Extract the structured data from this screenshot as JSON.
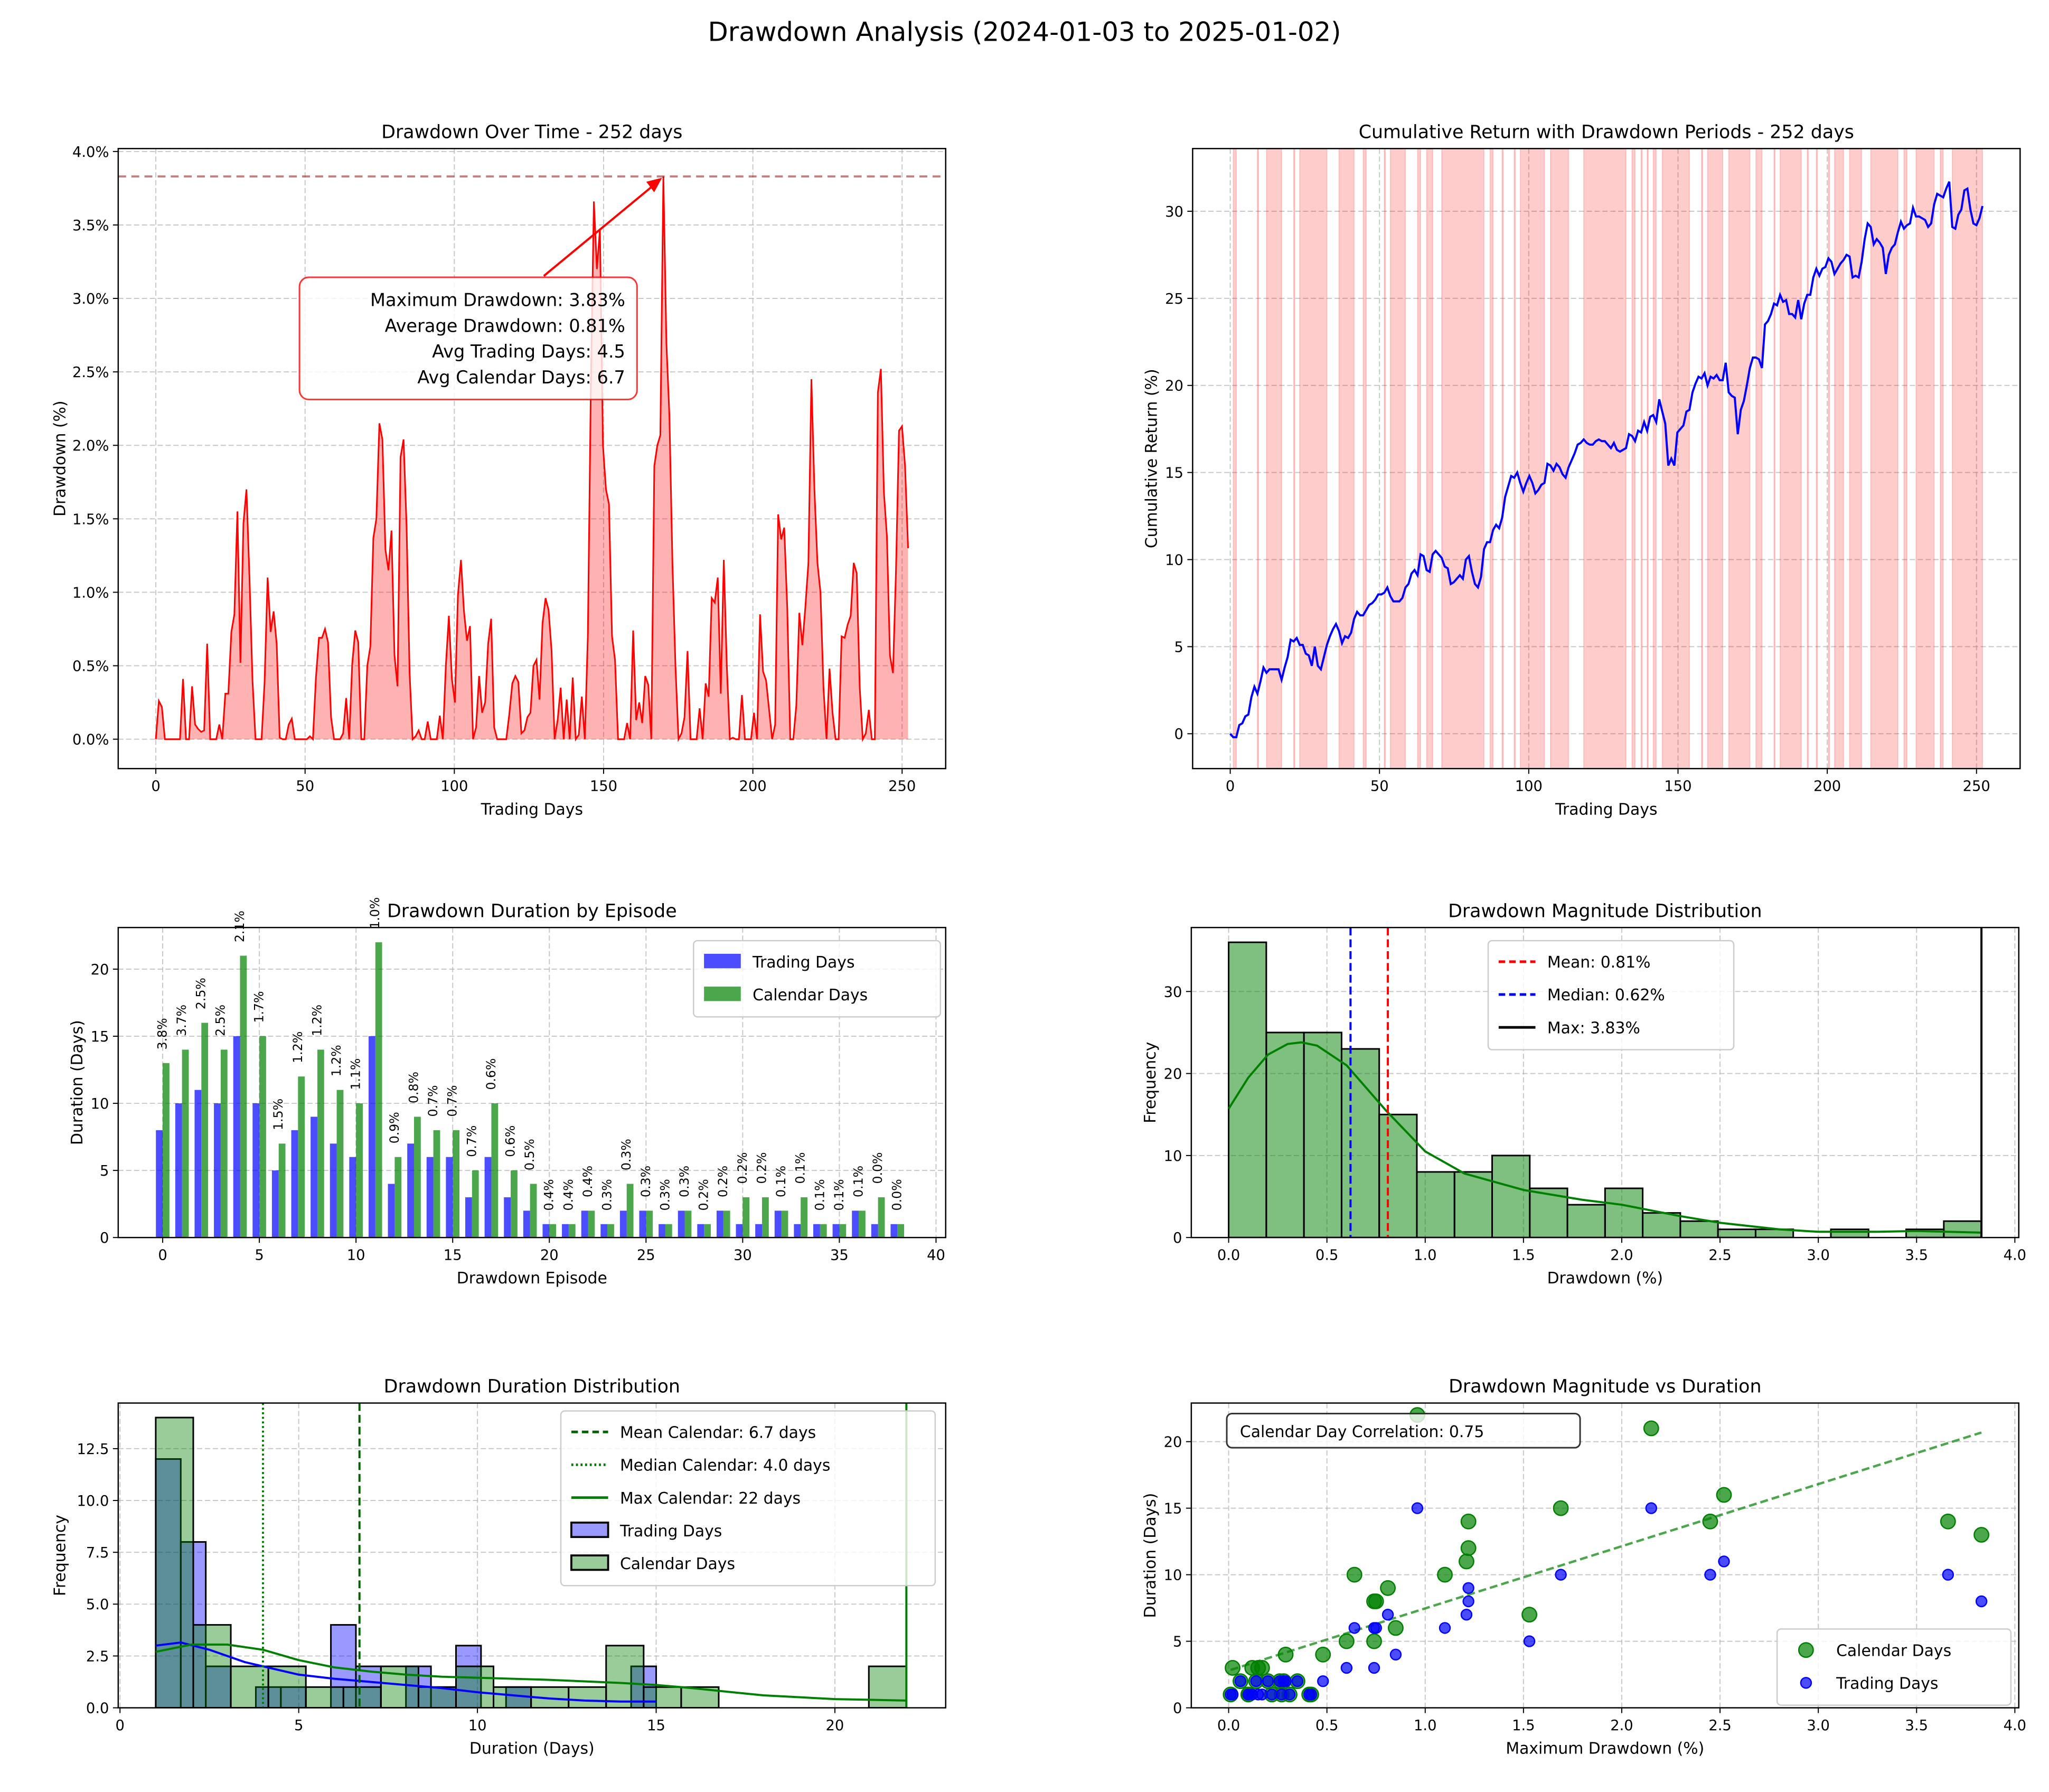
{
  "suptitle": "Drawdown Analysis (2024-01-03 to 2025-01-02)",
  "chart_data": [
    {
      "type": "area",
      "title": "Drawdown Over Time - 252 days",
      "xlabel": "Trading Days",
      "ylabel": "Drawdown (%)",
      "xlim": [
        -12.6,
        264.6
      ],
      "ylim": [
        -0.2,
        4.02
      ],
      "xticks": [
        0,
        50,
        100,
        150,
        200,
        250
      ],
      "xtick_labels": [
        "0",
        "50",
        "100",
        "150",
        "200",
        "250"
      ],
      "yticks": [
        0,
        0.5,
        1,
        1.5,
        2,
        2.5,
        3,
        3.5,
        4
      ],
      "ytick_labels": [
        "0.0%",
        "0.5%",
        "1.0%",
        "1.5%",
        "2.0%",
        "2.5%",
        "3.0%",
        "3.5%",
        "4.0%"
      ],
      "grid": true,
      "x_range_days": [
        0,
        252
      ],
      "line_color": "#ff0000",
      "max_drawdown_line": 3.83,
      "annotation": [
        "Maximum Drawdown: 3.83%",
        "Average Drawdown: 0.81%",
        "Avg Trading Days: 4.5",
        "Avg Calendar Days: 6.7"
      ],
      "drawdown_pct": [
        0,
        0.26,
        0.22,
        0,
        0,
        0,
        0,
        0,
        0,
        0.41,
        0,
        0,
        0.36,
        0.1,
        0.07,
        0.05,
        0.06,
        0.65,
        0,
        0,
        0,
        0.1,
        0,
        0.31,
        0.31,
        0.73,
        0.85,
        1.55,
        0.52,
        1.47,
        1.7,
        1.1,
        0.4,
        0,
        0,
        0,
        0.39,
        1.1,
        0.73,
        0.87,
        0.65,
        0.01,
        0,
        0,
        0.1,
        0.14,
        0,
        0,
        0,
        0,
        0,
        0.02,
        0,
        0.42,
        0.69,
        0.69,
        0.75,
        0.66,
        0.15,
        0,
        0,
        0,
        0.04,
        0.28,
        0,
        0.51,
        0.74,
        0.66,
        0,
        0,
        0.5,
        0.63,
        1.37,
        1.5,
        2.15,
        2.04,
        1.29,
        1.15,
        1.42,
        0.57,
        0.36,
        1.92,
        2.04,
        1.45,
        0.45,
        0,
        0.02,
        0.06,
        0,
        0,
        0.12,
        0,
        0,
        0,
        0.16,
        0,
        0.5,
        0.84,
        0.41,
        0.25,
        0.98,
        1.22,
        0.87,
        0.67,
        0.77,
        0,
        0.08,
        0.43,
        0.18,
        0.25,
        0.65,
        0.82,
        0.08,
        0,
        0,
        0,
        0,
        0.17,
        0.38,
        0.43,
        0.39,
        0.04,
        0.06,
        0.15,
        0.18,
        0.5,
        0.54,
        0.27,
        0.79,
        0.96,
        0.88,
        0.6,
        0,
        0.13,
        0.35,
        0,
        0.27,
        0,
        0.42,
        0,
        0.03,
        0.29,
        0,
        0.7,
        2.4,
        3.66,
        3.2,
        3.47,
        2.0,
        1.7,
        1.6,
        0.7,
        0.54,
        0,
        0,
        0,
        0.11,
        0,
        0.74,
        0.13,
        0.25,
        0.11,
        0.43,
        0.37,
        0,
        1.86,
        2.0,
        2.07,
        3.83,
        2.7,
        2.2,
        1.2,
        0.5,
        0,
        0.04,
        0.15,
        0.6,
        0,
        0,
        0,
        0.21,
        0,
        0.38,
        0.29,
        0.96,
        0.93,
        1.1,
        0.31,
        1.22,
        0.5,
        0,
        0.01,
        0,
        0,
        0.3,
        0,
        0,
        0,
        0.18,
        0,
        0.85,
        0.46,
        0.4,
        0.2,
        0,
        0.1,
        1.53,
        1.36,
        1.44,
        0.9,
        0,
        0,
        0.23,
        0.86,
        0.64,
        0.9,
        1.2,
        2.45,
        1.7,
        1.2,
        1.0,
        0.35,
        0,
        0.48,
        0.18,
        0,
        0,
        0.7,
        0.69,
        0.78,
        0.84,
        1.2,
        1.13,
        0.35,
        0,
        0.04,
        0.2,
        0,
        0,
        2.36,
        2.52,
        1.68,
        1.38,
        0.57,
        0.45,
        1.15,
        2.1,
        2.13,
        1.86,
        1.3
      ]
    },
    {
      "type": "line",
      "title": "Cumulative Return with Drawdown Periods - 252 days",
      "xlabel": "Trading Days",
      "ylabel": "Cumulative Return (%)",
      "xlim": [
        -12.6,
        264.6
      ],
      "ylim": [
        -2.0,
        33.6
      ],
      "xticks": [
        0,
        50,
        100,
        150,
        200,
        250
      ],
      "xtick_labels": [
        "0",
        "50",
        "100",
        "150",
        "200",
        "250"
      ],
      "yticks": [
        0,
        5,
        10,
        15,
        20,
        25,
        30
      ],
      "ytick_labels": [
        "0",
        "5",
        "10",
        "15",
        "20",
        "25",
        "30"
      ],
      "grid": true,
      "x_range_days": [
        0,
        252
      ],
      "line_color": "#0000ff",
      "shade_color": "#ff0000",
      "cumulative_return_pct": [
        0,
        -0.2,
        -0.2,
        0.5,
        0.6,
        1.0,
        1.1,
        2.1,
        2.7,
        2.3,
        3.0,
        3.8,
        3.5,
        3.7,
        3.7,
        3.7,
        3.7,
        3.1,
        3.8,
        4.4,
        5.4,
        5.3,
        5.5,
        5.1,
        5.1,
        4.6,
        4.5,
        3.9,
        5.0,
        3.9,
        3.7,
        4.4,
        5.1,
        5.6,
        6.0,
        6.3,
        5.9,
        5.2,
        5.6,
        5.5,
        5.8,
        6.6,
        7.0,
        6.8,
        6.8,
        7.1,
        7.4,
        7.5,
        7.7,
        8.0,
        8.0,
        8.1,
        8.4,
        7.9,
        7.6,
        7.6,
        7.6,
        7.8,
        8.4,
        8.6,
        9.2,
        9.4,
        9.1,
        10.3,
        10.2,
        9.4,
        9.3,
        10.3,
        10.5,
        10.3,
        10.1,
        9.6,
        9.5,
        8.6,
        8.7,
        8.9,
        9.1,
        8.9,
        10.0,
        10.2,
        9.3,
        8.6,
        8.4,
        9.0,
        10.6,
        11.0,
        11.0,
        11.7,
        12.0,
        11.8,
        12.4,
        13.6,
        14.2,
        14.8,
        14.7,
        15.0,
        14.4,
        13.9,
        14.4,
        14.8,
        14.4,
        13.8,
        14.0,
        14.3,
        14.4,
        15.5,
        15.4,
        15.1,
        15.5,
        15.3,
        14.9,
        14.7,
        15.3,
        15.7,
        16.1,
        16.6,
        16.7,
        16.9,
        16.7,
        16.6,
        16.6,
        16.8,
        16.9,
        16.8,
        16.8,
        16.6,
        16.4,
        16.7,
        16.3,
        16.2,
        16.3,
        16.4,
        17.2,
        17.1,
        16.8,
        17.4,
        17.3,
        17.9,
        17.4,
        18.2,
        18.3,
        17.9,
        19.2,
        18.5,
        17.8,
        15.4,
        15.8,
        15.4,
        17.3,
        17.5,
        17.7,
        18.5,
        18.6,
        19.6,
        20.1,
        20.5,
        20.4,
        20.7,
        20.0,
        20.5,
        20.4,
        20.6,
        20.3,
        20.3,
        21.3,
        19.6,
        19.4,
        19.3,
        17.2,
        18.6,
        19.1,
        20.0,
        21.0,
        21.6,
        21.6,
        21.5,
        21.0,
        23.5,
        23.7,
        24.1,
        24.7,
        24.6,
        25.2,
        24.8,
        24.9,
        24.1,
        24.1,
        23.9,
        24.9,
        23.8,
        24.7,
        25.2,
        25.2,
        26.2,
        26.7,
        26.3,
        26.7,
        26.8,
        27.3,
        27.1,
        26.4,
        26.7,
        27.0,
        27.2,
        27.5,
        27.4,
        26.2,
        26.3,
        26.2,
        27.1,
        28.4,
        29.3,
        29.1,
        28.1,
        28.4,
        28.2,
        27.9,
        26.4,
        27.5,
        27.9,
        28.1,
        28.8,
        29.4,
        29.0,
        29.2,
        29.3,
        30.2,
        29.7,
        29.7,
        29.6,
        29.5,
        29.1,
        29.3,
        30.4,
        31.0,
        30.9,
        30.8,
        31.3,
        31.7,
        29.1,
        29.0,
        29.8,
        30.1,
        31.2,
        31.3,
        30.1,
        29.3,
        29.2,
        29.6,
        30.3
      ]
    },
    {
      "type": "bar",
      "title": "Drawdown Duration by Episode",
      "xlabel": "Drawdown Episode",
      "ylabel": "Duration (Days)",
      "xlim": [
        -2.3,
        40.5
      ],
      "ylim": [
        0,
        23.1
      ],
      "xticks": [
        0,
        5,
        10,
        15,
        20,
        25,
        30,
        35,
        40
      ],
      "xtick_labels": [
        "0",
        "5",
        "10",
        "15",
        "20",
        "25",
        "30",
        "35",
        "40"
      ],
      "yticks": [
        0,
        5,
        10,
        15,
        20
      ],
      "ytick_labels": [
        "0",
        "5",
        "10",
        "15",
        "20"
      ],
      "grid": true,
      "legend": "top-right",
      "series": [
        {
          "name": "Trading Days",
          "color": "#0000ff",
          "values": [
            8,
            10,
            11,
            10,
            15,
            10,
            5,
            8,
            9,
            7,
            6,
            15,
            4,
            7,
            6,
            6,
            3,
            6,
            3,
            2,
            1,
            1,
            2,
            1,
            2,
            2,
            1,
            2,
            1,
            2,
            1,
            1,
            2,
            1,
            1,
            1,
            2,
            1,
            1
          ]
        },
        {
          "name": "Calendar Days",
          "color": "#008000",
          "values": [
            13,
            14,
            16,
            14,
            21,
            15,
            7,
            12,
            14,
            11,
            10,
            22,
            6,
            9,
            8,
            8,
            5,
            10,
            5,
            4,
            1,
            1,
            2,
            1,
            4,
            2,
            1,
            2,
            1,
            2,
            3,
            3,
            2,
            3,
            1,
            1,
            2,
            3,
            1
          ]
        }
      ],
      "bar_labels": [
        "3.8%",
        "3.7%",
        "2.5%",
        "2.5%",
        "2.1%",
        "1.7%",
        "1.5%",
        "1.2%",
        "1.2%",
        "1.2%",
        "1.1%",
        "1.0%",
        "0.9%",
        "0.8%",
        "0.7%",
        "0.7%",
        "0.7%",
        "0.6%",
        "0.6%",
        "0.5%",
        "0.4%",
        "0.4%",
        "0.4%",
        "0.3%",
        "0.3%",
        "0.3%",
        "0.3%",
        "0.3%",
        "0.2%",
        "0.2%",
        "0.2%",
        "0.2%",
        "0.1%",
        "0.1%",
        "0.1%",
        "0.1%",
        "0.1%",
        "0.0%",
        "0.0%"
      ]
    },
    {
      "type": "histogram",
      "title": "Drawdown Magnitude Distribution",
      "xlabel": "Drawdown (%)",
      "ylabel": "Frequency",
      "xlim": [
        -0.19,
        4.02
      ],
      "ylim": [
        0,
        37.8
      ],
      "xticks": [
        0,
        0.5,
        1,
        1.5,
        2,
        2.5,
        3,
        3.5,
        4
      ],
      "xtick_labels": [
        "0.0",
        "0.5",
        "1.0",
        "1.5",
        "2.0",
        "2.5",
        "3.0",
        "3.5",
        "4.0"
      ],
      "yticks": [
        0,
        10,
        20,
        30
      ],
      "ytick_labels": [
        "0",
        "10",
        "20",
        "30"
      ],
      "grid": true,
      "legend": "top-center",
      "bin_range": [
        0,
        3.83
      ],
      "counts": [
        36,
        25,
        25,
        23,
        15,
        8,
        8,
        10,
        6,
        4,
        6,
        3,
        2,
        1,
        1,
        0,
        1,
        0,
        1,
        2
      ],
      "bar_color": "#008000",
      "kde": {
        "x": [
          0,
          0.1,
          0.2,
          0.3,
          0.37,
          0.45,
          0.6,
          0.8,
          1.0,
          1.2,
          1.5,
          1.8,
          2.0,
          2.3,
          2.5,
          2.8,
          3.0,
          3.3,
          3.5,
          3.83
        ],
        "y": [
          15.7,
          19.5,
          22.3,
          23.6,
          23.8,
          23.4,
          21,
          15.5,
          10.5,
          7.8,
          5.8,
          4.6,
          4.0,
          2.6,
          1.8,
          1.0,
          0.7,
          0.7,
          0.8,
          0.6
        ]
      },
      "vlines": [
        {
          "label": "Mean: 0.81%",
          "value": 0.81,
          "color": "#ff0000",
          "style": "dashed"
        },
        {
          "label": "Median: 0.62%",
          "value": 0.62,
          "color": "#0000ff",
          "style": "dashed"
        },
        {
          "label": "Max: 3.83%",
          "value": 3.83,
          "color": "#000000",
          "style": "solid"
        }
      ]
    },
    {
      "type": "histogram",
      "title": "Drawdown Duration Distribution",
      "xlabel": "Duration (Days)",
      "ylabel": "Frequency",
      "xlim": [
        -0.05,
        23.1
      ],
      "ylim": [
        0,
        14.7
      ],
      "xticks": [
        0,
        5,
        10,
        15,
        20
      ],
      "xtick_labels": [
        "0",
        "5",
        "10",
        "15",
        "20"
      ],
      "yticks": [
        0,
        2.5,
        5,
        7.5,
        10,
        12.5
      ],
      "ytick_labels": [
        "0.0",
        "2.5",
        "5.0",
        "7.5",
        "10.0",
        "12.5"
      ],
      "grid": true,
      "legend": "top-right",
      "series": [
        {
          "name": "Trading Days",
          "color": "#0000ff",
          "bin_range": [
            1,
            15
          ],
          "counts": [
            12,
            8,
            2,
            0,
            1,
            1,
            0,
            4,
            2,
            0,
            2,
            1,
            3,
            0,
            1,
            0,
            0,
            0,
            0,
            2
          ],
          "kde": {
            "x": [
              1,
              1.7,
              2.5,
              3.5,
              5,
              6,
              7,
              8,
              9,
              10,
              11,
              12,
              13,
              14,
              15
            ],
            "y": [
              3.0,
              3.15,
              2.8,
              2.2,
              1.6,
              1.4,
              1.25,
              1.1,
              0.95,
              0.75,
              0.6,
              0.45,
              0.35,
              0.3,
              0.3
            ]
          }
        },
        {
          "name": "Calendar Days",
          "color": "#008000",
          "bin_range": [
            1,
            22
          ],
          "counts": [
            14,
            4,
            2,
            2,
            1,
            1,
            2,
            1,
            2,
            1,
            1,
            1,
            3,
            1,
            1,
            0,
            0,
            0,
            0,
            2
          ],
          "kde": {
            "x": [
              1,
              2,
              3,
              4,
              5,
              6,
              7,
              8,
              9,
              10,
              12,
              14,
              15,
              16,
              18,
              20,
              22
            ],
            "y": [
              2.7,
              3.05,
              3.05,
              2.8,
              2.3,
              1.95,
              1.75,
              1.6,
              1.5,
              1.45,
              1.35,
              1.2,
              1.1,
              0.95,
              0.6,
              0.42,
              0.35
            ]
          }
        }
      ],
      "vlines": [
        {
          "label": "Mean Calendar: 6.7 days",
          "value": 6.7,
          "color": "#006400",
          "style": "dashed"
        },
        {
          "label": "Median Calendar: 4.0 days",
          "value": 4.0,
          "color": "#008000",
          "style": "dotted"
        },
        {
          "label": "Max Calendar: 22 days",
          "value": 22,
          "color": "#008000",
          "style": "solid"
        }
      ]
    },
    {
      "type": "scatter",
      "title": "Drawdown Magnitude vs Duration",
      "xlabel": "Maximum Drawdown (%)",
      "ylabel": "Duration (Days)",
      "xlim": [
        -0.19,
        4.02
      ],
      "ylim": [
        0,
        22.9
      ],
      "xticks": [
        0,
        0.5,
        1,
        1.5,
        2,
        2.5,
        3,
        3.5,
        4
      ],
      "xtick_labels": [
        "0.0",
        "0.5",
        "1.0",
        "1.5",
        "2.0",
        "2.5",
        "3.0",
        "3.5",
        "4.0"
      ],
      "yticks": [
        0,
        5,
        10,
        15,
        20
      ],
      "ytick_labels": [
        "0",
        "5",
        "10",
        "15",
        "20"
      ],
      "grid": true,
      "legend": "bottom-right",
      "magnitude_pct": [
        3.83,
        3.66,
        2.52,
        2.45,
        2.15,
        1.69,
        1.53,
        1.22,
        1.22,
        1.21,
        1.1,
        0.96,
        0.85,
        0.81,
        0.75,
        0.74,
        0.74,
        0.64,
        0.6,
        0.48,
        0.42,
        0.41,
        0.35,
        0.31,
        0.29,
        0.28,
        0.27,
        0.26,
        0.22,
        0.2,
        0.17,
        0.15,
        0.14,
        0.12,
        0.1,
        0.1,
        0.06,
        0.02,
        0.01
      ],
      "series": [
        {
          "name": "Calendar Days",
          "color": "#008000",
          "ref": 1
        },
        {
          "name": "Trading Days",
          "color": "#0000ff",
          "ref": 0
        }
      ],
      "trendline": {
        "slope": 4.67,
        "intercept": 2.8,
        "color": "#008000"
      },
      "correlation_text": "Calendar Day Correlation: 0.75"
    }
  ]
}
